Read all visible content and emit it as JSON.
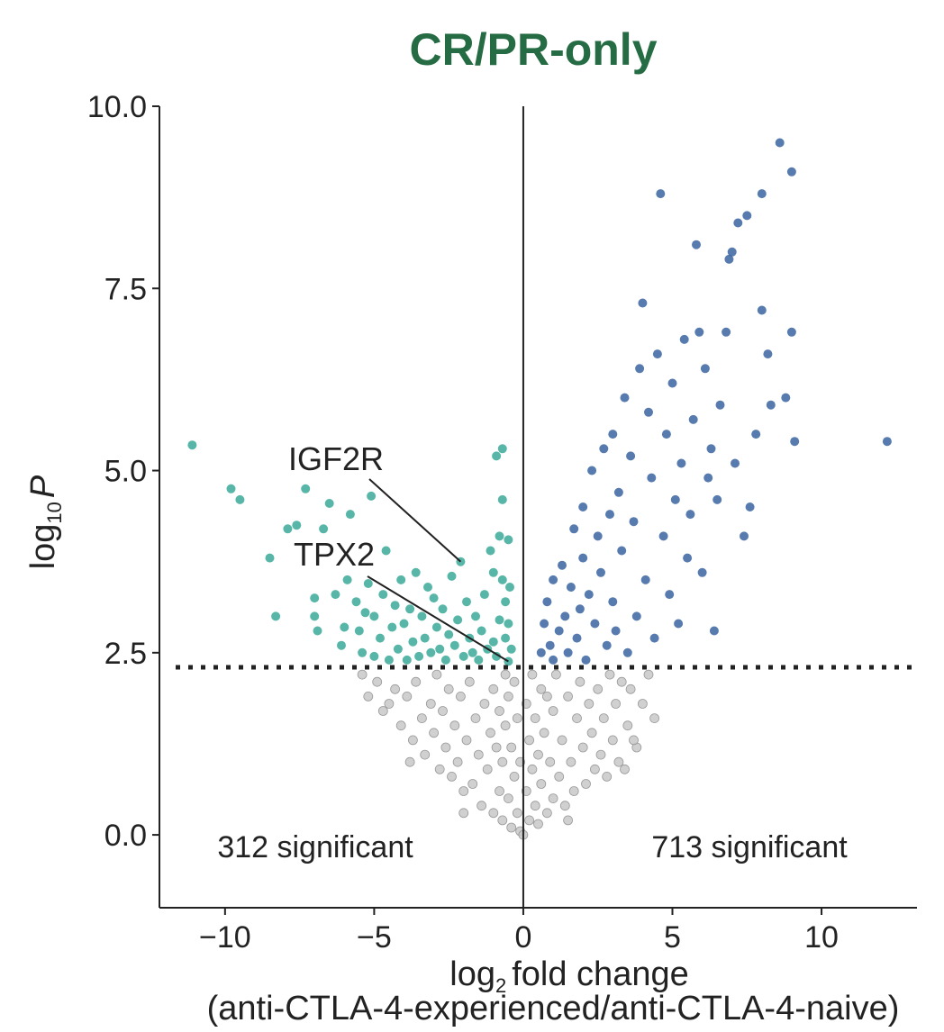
{
  "chart_data": {
    "type": "scatter",
    "title": "CR/PR-only",
    "xlabel_main": "fold change",
    "xlabel_log": "log",
    "xlabel_sub": "2",
    "xlabel_line2": "(anti-CTLA-4-experienced/anti-CTLA-4-naive)",
    "ylabel_log": "log",
    "ylabel_sub": "10",
    "ylabel_var": "P",
    "xlim": [
      -12.2,
      13.2
    ],
    "ylim": [
      -1.0,
      10.0
    ],
    "xticks": [
      -10,
      -5,
      0,
      5,
      10
    ],
    "xtick_labels": [
      "−10",
      "−5",
      "0",
      "5",
      "10"
    ],
    "yticks": [
      0,
      2.5,
      5,
      7.5,
      10
    ],
    "ytick_labels": [
      "0.0",
      "2.5",
      "5.0",
      "7.5",
      "10.0"
    ],
    "threshold_y": 2.3,
    "grid": false,
    "left_count_label": "312 significant",
    "right_count_label": "713 significant",
    "colors": {
      "title": "#256b43",
      "down": "#3aa998",
      "up": "#3a64a0",
      "ns": "#c8c8c8",
      "ns_stroke": "#9a9a9a",
      "axis": "#222222"
    },
    "annotations": [
      {
        "label": "IGF2R",
        "x": -2.1,
        "y": 3.75
      },
      {
        "label": "TPX2",
        "x": -0.5,
        "y": 2.38
      }
    ],
    "series": [
      {
        "name": "down",
        "points": [
          [
            -11.1,
            5.35
          ],
          [
            -9.8,
            4.75
          ],
          [
            -9.5,
            4.6
          ],
          [
            -8.5,
            3.8
          ],
          [
            -8.3,
            3.0
          ],
          [
            -7.9,
            4.2
          ],
          [
            -7.6,
            4.25
          ],
          [
            -7.3,
            4.75
          ],
          [
            -7.0,
            3.0
          ],
          [
            -7.0,
            3.25
          ],
          [
            -6.9,
            2.8
          ],
          [
            -6.7,
            4.2
          ],
          [
            -6.5,
            4.55
          ],
          [
            -6.3,
            3.3
          ],
          [
            -6.1,
            2.6
          ],
          [
            -6.0,
            2.85
          ],
          [
            -5.9,
            3.5
          ],
          [
            -5.8,
            4.4
          ],
          [
            -5.6,
            3.2
          ],
          [
            -5.5,
            2.8
          ],
          [
            -5.4,
            2.5
          ],
          [
            -5.3,
            3.05
          ],
          [
            -5.2,
            3.45
          ],
          [
            -5.1,
            4.65
          ],
          [
            -5.0,
            2.45
          ],
          [
            -5.0,
            3.0
          ],
          [
            -4.8,
            2.7
          ],
          [
            -4.7,
            3.3
          ],
          [
            -4.6,
            3.9
          ],
          [
            -4.5,
            2.4
          ],
          [
            -4.4,
            2.85
          ],
          [
            -4.3,
            3.15
          ],
          [
            -4.2,
            2.55
          ],
          [
            -4.1,
            3.5
          ],
          [
            -4.0,
            2.9
          ],
          [
            -3.9,
            2.4
          ],
          [
            -3.8,
            3.1
          ],
          [
            -3.7,
            2.65
          ],
          [
            -3.6,
            3.6
          ],
          [
            -3.5,
            2.45
          ],
          [
            -3.4,
            3.0
          ],
          [
            -3.3,
            2.7
          ],
          [
            -3.2,
            3.4
          ],
          [
            -3.1,
            2.5
          ],
          [
            -3.0,
            3.25
          ],
          [
            -2.9,
            2.85
          ],
          [
            -2.8,
            2.55
          ],
          [
            -2.7,
            3.1
          ],
          [
            -2.6,
            2.4
          ],
          [
            -2.5,
            2.75
          ],
          [
            -2.4,
            3.55
          ],
          [
            -2.3,
            2.6
          ],
          [
            -2.2,
            2.95
          ],
          [
            -2.1,
            3.75
          ],
          [
            -2.0,
            2.45
          ],
          [
            -1.9,
            3.2
          ],
          [
            -1.8,
            2.7
          ],
          [
            -1.7,
            2.5
          ],
          [
            -1.6,
            3.0
          ],
          [
            -1.5,
            2.4
          ],
          [
            -1.4,
            2.8
          ],
          [
            -1.3,
            3.3
          ],
          [
            -1.2,
            2.55
          ],
          [
            -1.1,
            3.9
          ],
          [
            -1.0,
            2.65
          ],
          [
            -1.0,
            3.6
          ],
          [
            -0.9,
            5.2
          ],
          [
            -0.9,
            2.45
          ],
          [
            -0.8,
            4.1
          ],
          [
            -0.8,
            2.95
          ],
          [
            -0.7,
            5.3
          ],
          [
            -0.7,
            4.6
          ],
          [
            -0.7,
            3.5
          ],
          [
            -0.6,
            2.7
          ],
          [
            -0.6,
            3.2
          ],
          [
            -0.5,
            2.38
          ],
          [
            -0.5,
            4.05
          ],
          [
            -0.5,
            2.9
          ],
          [
            -0.45,
            3.4
          ],
          [
            -0.4,
            2.55
          ]
        ]
      },
      {
        "name": "up",
        "points": [
          [
            0.6,
            2.5
          ],
          [
            0.7,
            2.9
          ],
          [
            0.8,
            3.2
          ],
          [
            0.9,
            2.6
          ],
          [
            1.0,
            3.5
          ],
          [
            1.0,
            2.4
          ],
          [
            1.2,
            2.8
          ],
          [
            1.3,
            3.7
          ],
          [
            1.4,
            3.0
          ],
          [
            1.5,
            2.5
          ],
          [
            1.6,
            3.4
          ],
          [
            1.7,
            4.2
          ],
          [
            1.8,
            2.7
          ],
          [
            1.9,
            3.1
          ],
          [
            2.0,
            4.5
          ],
          [
            2.0,
            3.8
          ],
          [
            2.1,
            2.4
          ],
          [
            2.2,
            3.3
          ],
          [
            2.3,
            5.0
          ],
          [
            2.4,
            2.9
          ],
          [
            2.5,
            4.1
          ],
          [
            2.6,
            3.6
          ],
          [
            2.7,
            5.3
          ],
          [
            2.8,
            2.6
          ],
          [
            2.9,
            4.4
          ],
          [
            3.0,
            3.2
          ],
          [
            3.0,
            5.5
          ],
          [
            3.1,
            2.8
          ],
          [
            3.2,
            4.7
          ],
          [
            3.3,
            3.9
          ],
          [
            3.4,
            6.0
          ],
          [
            3.5,
            2.5
          ],
          [
            3.6,
            5.2
          ],
          [
            3.7,
            4.3
          ],
          [
            3.8,
            3.0
          ],
          [
            3.9,
            6.4
          ],
          [
            4.0,
            7.3
          ],
          [
            4.1,
            3.5
          ],
          [
            4.2,
            5.8
          ],
          [
            4.3,
            4.9
          ],
          [
            4.4,
            2.7
          ],
          [
            4.5,
            6.6
          ],
          [
            4.6,
            8.8
          ],
          [
            4.7,
            4.1
          ],
          [
            4.8,
            5.5
          ],
          [
            4.9,
            3.3
          ],
          [
            5.0,
            6.2
          ],
          [
            5.1,
            4.6
          ],
          [
            5.2,
            2.9
          ],
          [
            5.3,
            5.1
          ],
          [
            5.4,
            6.8
          ],
          [
            5.5,
            3.8
          ],
          [
            5.6,
            4.4
          ],
          [
            5.7,
            5.7
          ],
          [
            5.8,
            8.1
          ],
          [
            5.9,
            6.9
          ],
          [
            6.0,
            3.6
          ],
          [
            6.1,
            6.4
          ],
          [
            6.2,
            4.9
          ],
          [
            6.3,
            5.3
          ],
          [
            6.4,
            2.8
          ],
          [
            6.5,
            4.6
          ],
          [
            6.6,
            5.9
          ],
          [
            6.8,
            6.9
          ],
          [
            6.9,
            7.9
          ],
          [
            7.0,
            8.0
          ],
          [
            7.1,
            5.1
          ],
          [
            7.2,
            8.4
          ],
          [
            7.4,
            4.1
          ],
          [
            7.5,
            8.5
          ],
          [
            7.6,
            4.5
          ],
          [
            7.8,
            5.5
          ],
          [
            8.0,
            7.2
          ],
          [
            8.0,
            8.8
          ],
          [
            8.2,
            6.6
          ],
          [
            8.3,
            5.9
          ],
          [
            8.6,
            9.5
          ],
          [
            8.8,
            6.0
          ],
          [
            9.0,
            9.1
          ],
          [
            9.0,
            6.9
          ],
          [
            9.1,
            5.4
          ],
          [
            12.2,
            5.4
          ]
        ]
      },
      {
        "name": "ns",
        "points": [
          [
            -5.4,
            2.2
          ],
          [
            -5.2,
            1.9
          ],
          [
            -4.9,
            2.1
          ],
          [
            -4.7,
            1.7
          ],
          [
            -4.5,
            1.8
          ],
          [
            -4.3,
            2.0
          ],
          [
            -4.1,
            1.5
          ],
          [
            -3.9,
            1.9
          ],
          [
            -3.7,
            1.3
          ],
          [
            -3.6,
            2.1
          ],
          [
            -3.4,
            1.6
          ],
          [
            -3.3,
            1.1
          ],
          [
            -3.1,
            1.8
          ],
          [
            -3.0,
            1.4
          ],
          [
            -2.9,
            2.2
          ],
          [
            -2.8,
            0.9
          ],
          [
            -2.7,
            1.7
          ],
          [
            -2.6,
            1.2
          ],
          [
            -2.5,
            2.0
          ],
          [
            -2.4,
            0.8
          ],
          [
            -2.3,
            1.5
          ],
          [
            -2.2,
            1.0
          ],
          [
            -2.1,
            1.9
          ],
          [
            -2.0,
            0.6
          ],
          [
            -1.9,
            1.3
          ],
          [
            -1.8,
            2.1
          ],
          [
            -1.7,
            0.7
          ],
          [
            -1.6,
            1.6
          ],
          [
            -1.5,
            1.1
          ],
          [
            -1.4,
            0.4
          ],
          [
            -1.3,
            1.8
          ],
          [
            -1.2,
            0.9
          ],
          [
            -1.1,
            1.4
          ],
          [
            -1.0,
            0.3
          ],
          [
            -1.0,
            2.0
          ],
          [
            -0.9,
            1.2
          ],
          [
            -0.8,
            0.6
          ],
          [
            -0.8,
            1.7
          ],
          [
            -0.7,
            0.2
          ],
          [
            -0.7,
            1.0
          ],
          [
            -0.6,
            2.2
          ],
          [
            -0.6,
            1.5
          ],
          [
            -0.5,
            0.5
          ],
          [
            -0.5,
            1.9
          ],
          [
            -0.4,
            0.1
          ],
          [
            -0.4,
            1.2
          ],
          [
            -0.3,
            0.8
          ],
          [
            -0.3,
            2.1
          ],
          [
            -0.2,
            0.3
          ],
          [
            -0.2,
            1.6
          ],
          [
            -0.1,
            0.05
          ],
          [
            -0.1,
            1.0
          ],
          [
            0.0,
            0.0
          ],
          [
            0.1,
            0.6
          ],
          [
            0.1,
            1.8
          ],
          [
            0.2,
            0.2
          ],
          [
            0.2,
            1.3
          ],
          [
            0.3,
            0.9
          ],
          [
            0.3,
            2.2
          ],
          [
            0.4,
            0.4
          ],
          [
            0.4,
            1.6
          ],
          [
            0.5,
            1.1
          ],
          [
            0.5,
            0.15
          ],
          [
            0.6,
            2.0
          ],
          [
            0.6,
            0.7
          ],
          [
            0.7,
            1.4
          ],
          [
            0.8,
            0.3
          ],
          [
            0.8,
            1.9
          ],
          [
            0.9,
            1.0
          ],
          [
            1.0,
            0.5
          ],
          [
            1.0,
            1.7
          ],
          [
            1.1,
            2.2
          ],
          [
            1.2,
            0.8
          ],
          [
            1.3,
            1.3
          ],
          [
            1.4,
            0.4
          ],
          [
            1.5,
            1.9
          ],
          [
            1.6,
            1.0
          ],
          [
            1.7,
            0.6
          ],
          [
            1.8,
            1.6
          ],
          [
            1.9,
            2.1
          ],
          [
            2.0,
            1.2
          ],
          [
            2.1,
            0.7
          ],
          [
            2.2,
            1.8
          ],
          [
            2.3,
            1.4
          ],
          [
            2.4,
            0.9
          ],
          [
            2.5,
            2.0
          ],
          [
            2.6,
            1.1
          ],
          [
            2.7,
            1.6
          ],
          [
            2.8,
            0.8
          ],
          [
            2.9,
            2.2
          ],
          [
            3.0,
            1.3
          ],
          [
            3.1,
            1.8
          ],
          [
            3.2,
            1.0
          ],
          [
            3.3,
            2.1
          ],
          [
            3.5,
            1.5
          ],
          [
            3.6,
            2.0
          ],
          [
            3.8,
            1.2
          ],
          [
            4.0,
            1.8
          ],
          [
            4.2,
            2.2
          ],
          [
            4.4,
            1.6
          ],
          [
            3.7,
            1.3
          ],
          [
            3.4,
            0.9
          ],
          [
            -3.8,
            1.0
          ],
          [
            -2.0,
            0.3
          ],
          [
            1.5,
            0.2
          ]
        ]
      }
    ]
  }
}
